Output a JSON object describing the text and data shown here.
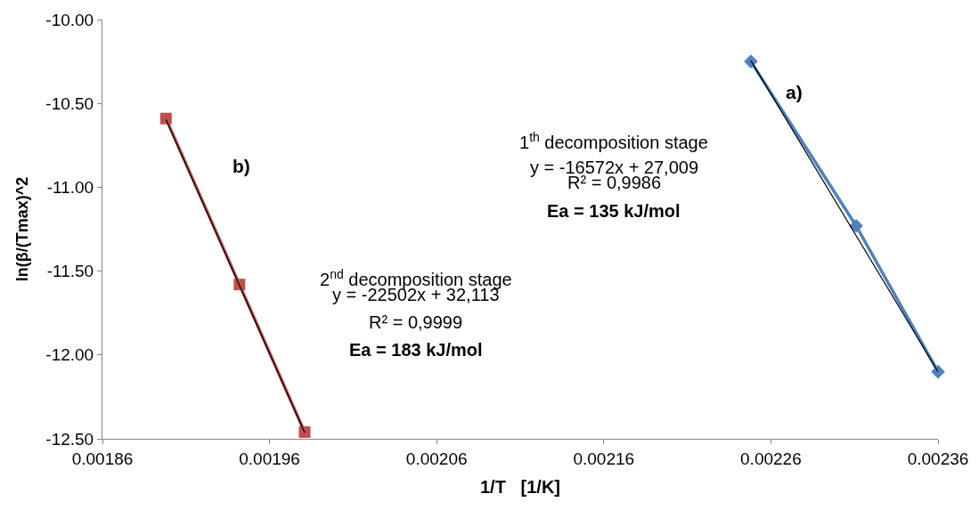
{
  "chart_data": {
    "type": "line",
    "xlabel": "1/T   [1/K]",
    "ylabel": "ln(β/(Tmax)^2",
    "xlim": [
      0.00186,
      0.00236
    ],
    "xticks": [
      0.00186,
      0.00196,
      0.00206,
      0.00216,
      0.00226,
      0.00236
    ],
    "ylim": [
      -12.5,
      -10
    ],
    "yticks": [
      {
        "value": -12.5,
        "label": "-12.50"
      },
      {
        "value": -12,
        "label": "-12.00"
      },
      {
        "value": -11.5,
        "label": "-11.50"
      },
      {
        "value": -11,
        "label": "-11.00"
      },
      {
        "value": -10.5,
        "label": "-10.50"
      },
      {
        "value": -10,
        "label": "-10.00"
      }
    ],
    "series": [
      {
        "color": "#4f81bd",
        "marker": "diamond",
        "x": [
          0.002248,
          0.002311,
          0.00236
        ],
        "values": [
          -10.25,
          -11.23,
          -12.1
        ]
      },
      {
        "color": "#c0504d",
        "marker": "square",
        "x": [
          0.001898,
          0.001942,
          0.001981
        ],
        "values": [
          -10.59,
          -11.58,
          -12.46
        ]
      },
      {
        "color": "#000000",
        "marker": "none",
        "x": [
          0.002248,
          0.00236
        ],
        "values": [
          -10.245,
          -12.1
        ]
      },
      {
        "color": "#000000",
        "marker": "none",
        "x": [
          0.001898,
          0.001981
        ],
        "values": [
          -10.596,
          -12.463
        ]
      }
    ],
    "annotations": [
      "a)",
      "1$^{th}$ decomposition stage",
      "y = -16572x + 27,009",
      "R² = 0,9986",
      "Ea = 135 kJ/mol",
      "b)",
      "2$^{nd}$ decomposition stage",
      "y = -22502x + 32,113",
      "R² = 0,9999",
      "Ea = 183 kJ/mol"
    ]
  }
}
